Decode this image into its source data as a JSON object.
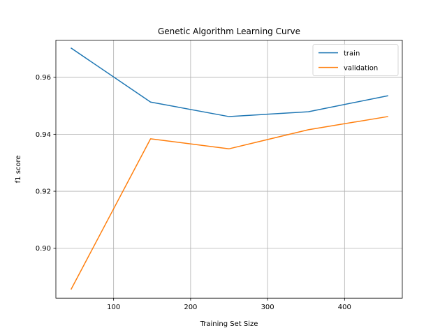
{
  "chart_data": {
    "type": "line",
    "title": "Genetic Algorithm Learning Curve",
    "xlabel": "Training Set Size",
    "ylabel": "f1 score",
    "xlim": [
      25,
      475
    ],
    "ylim": [
      0.8825,
      0.973
    ],
    "xticks": [
      100,
      200,
      300,
      400
    ],
    "yticks": [
      0.9,
      0.92,
      0.94,
      0.96
    ],
    "xtick_labels": [
      "100",
      "200",
      "300",
      "400"
    ],
    "ytick_labels": [
      "0.90",
      "0.92",
      "0.94",
      "0.96"
    ],
    "grid": true,
    "legend_position": "top-right",
    "x": [
      45,
      148,
      250,
      353,
      456
    ],
    "series": [
      {
        "name": "train",
        "color": "#1f77b4",
        "values": [
          0.9702,
          0.9513,
          0.9462,
          0.9479,
          0.9535
        ]
      },
      {
        "name": "validation",
        "color": "#ff7f0e",
        "values": [
          0.8857,
          0.9384,
          0.9349,
          0.9416,
          0.9462
        ]
      }
    ]
  }
}
